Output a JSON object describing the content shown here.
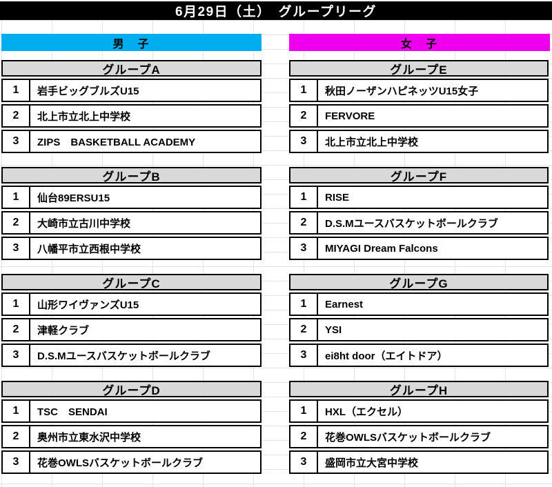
{
  "title": "6月29日（土）　グループリーグ",
  "columns": {
    "men": {
      "label": "男　子",
      "color": "#00aeef"
    },
    "women": {
      "label": "女　子",
      "color": "#ee00ee"
    }
  },
  "styles": {
    "group_header_bg": "#d9d9d9",
    "title_bar_bg": "#000000",
    "border_color": "#000000"
  },
  "groups_men": [
    {
      "title": "グループA",
      "rows": [
        {
          "num": "1",
          "team": "岩手ビッグブルズU15"
        },
        {
          "num": "2",
          "team": "北上市立北上中学校"
        },
        {
          "num": "3",
          "team": "ZIPS　BASKETBALL ACADEMY"
        }
      ]
    },
    {
      "title": "グループB",
      "rows": [
        {
          "num": "1",
          "team": "仙台89ERSU15"
        },
        {
          "num": "2",
          "team": "大崎市立古川中学校"
        },
        {
          "num": "3",
          "team": "八幡平市立西根中学校"
        }
      ]
    },
    {
      "title": "グループC",
      "rows": [
        {
          "num": "1",
          "team": "山形ワイヴァンズU15"
        },
        {
          "num": "2",
          "team": "津軽クラブ"
        },
        {
          "num": "3",
          "team": "D.S.Mユースバスケットボールクラブ"
        }
      ]
    },
    {
      "title": "グループD",
      "rows": [
        {
          "num": "1",
          "team": "TSC　SENDAI"
        },
        {
          "num": "2",
          "team": "奥州市立東水沢中学校"
        },
        {
          "num": "3",
          "team": "花巻OWLSバスケットボールクラブ"
        }
      ]
    }
  ],
  "groups_women": [
    {
      "title": "グループE",
      "rows": [
        {
          "num": "1",
          "team": "秋田ノーザンハピネッツU15女子"
        },
        {
          "num": "2",
          "team": "FERVORE"
        },
        {
          "num": "3",
          "team": "北上市立北上中学校"
        }
      ]
    },
    {
      "title": "グループF",
      "rows": [
        {
          "num": "1",
          "team": "RISE"
        },
        {
          "num": "2",
          "team": "D.S.Mユースバスケットボールクラブ"
        },
        {
          "num": "3",
          "team": "MIYAGI Dream Falcons"
        }
      ]
    },
    {
      "title": "グループG",
      "rows": [
        {
          "num": "1",
          "team": "Earnest"
        },
        {
          "num": "2",
          "team": "YSI"
        },
        {
          "num": "3",
          "team": "ei8ht door（エイトドア）"
        }
      ]
    },
    {
      "title": "グループH",
      "rows": [
        {
          "num": "1",
          "team": "HXL（エクセル）"
        },
        {
          "num": "2",
          "team": "花巻OWLSバスケットボールクラブ"
        },
        {
          "num": "3",
          "team": "盛岡市立大宮中学校"
        }
      ]
    }
  ]
}
